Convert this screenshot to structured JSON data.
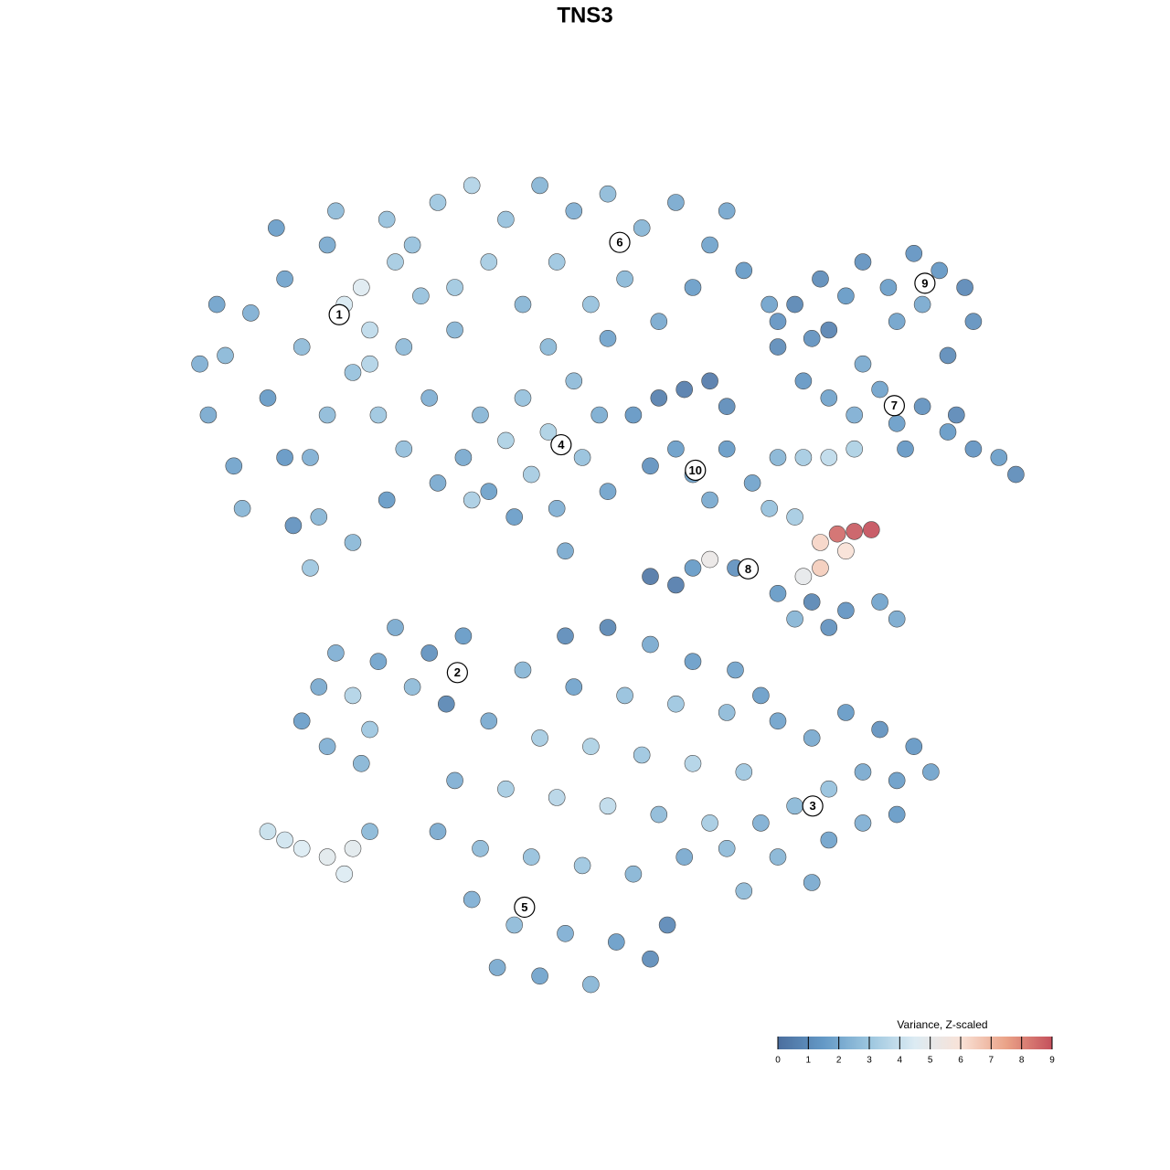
{
  "chart_data": {
    "type": "scatter",
    "title": "TNS3",
    "xlim": [
      -50,
      50
    ],
    "ylim": [
      -50,
      50
    ],
    "points": [
      {
        "x": -47,
        "y": 20,
        "value": 2
      },
      {
        "x": -45,
        "y": 27,
        "value": 2.5
      },
      {
        "x": -44,
        "y": 14,
        "value": 1.8
      },
      {
        "x": -42,
        "y": 32,
        "value": 2.2
      },
      {
        "x": -40,
        "y": 22,
        "value": 1.5
      },
      {
        "x": -38,
        "y": 36,
        "value": 1.8
      },
      {
        "x": -36,
        "y": 28,
        "value": 2.6
      },
      {
        "x": -35,
        "y": 15,
        "value": 2.2
      },
      {
        "x": -34,
        "y": 8,
        "value": 2.4
      },
      {
        "x": -33,
        "y": 40,
        "value": 2
      },
      {
        "x": -31,
        "y": 33,
        "value": 4.4
      },
      {
        "x": -29,
        "y": 35,
        "value": 4.6
      },
      {
        "x": -28,
        "y": 30,
        "value": 3.8
      },
      {
        "x": -30,
        "y": 25,
        "value": 2.8
      },
      {
        "x": -27,
        "y": 20,
        "value": 3
      },
      {
        "x": -25,
        "y": 38,
        "value": 3.2
      },
      {
        "x": -24,
        "y": 28,
        "value": 2.6
      },
      {
        "x": -22,
        "y": 34,
        "value": 2.8
      },
      {
        "x": -21,
        "y": 22,
        "value": 2.2
      },
      {
        "x": -20,
        "y": 12,
        "value": 2
      },
      {
        "x": -26,
        "y": 10,
        "value": 1.5
      },
      {
        "x": -30,
        "y": 5,
        "value": 2.5
      },
      {
        "x": -37,
        "y": 7,
        "value": 1.2
      },
      {
        "x": -43,
        "y": 9,
        "value": 2.4
      },
      {
        "x": -39,
        "y": 42,
        "value": 1.6
      },
      {
        "x": -32,
        "y": 44,
        "value": 2.6
      },
      {
        "x": -26,
        "y": 43,
        "value": 2.8
      },
      {
        "x": -18,
        "y": 30,
        "value": 2.4
      },
      {
        "x": -46,
        "y": 33,
        "value": 1.8
      },
      {
        "x": -48,
        "y": 26,
        "value": 2.2
      },
      {
        "x": -33,
        "y": 20,
        "value": 2.6
      },
      {
        "x": -35,
        "y": 2,
        "value": 3
      },
      {
        "x": -38,
        "y": 15,
        "value": 1.4
      },
      {
        "x": -24,
        "y": 16,
        "value": 2.7
      },
      {
        "x": -28,
        "y": 26,
        "value": 3.5
      },
      {
        "x": -20,
        "y": 45,
        "value": 3
      },
      {
        "x": -16,
        "y": 47,
        "value": 3.5
      },
      {
        "x": -12,
        "y": 43,
        "value": 2.8
      },
      {
        "x": -8,
        "y": 47,
        "value": 2.4
      },
      {
        "x": -4,
        "y": 44,
        "value": 2.2
      },
      {
        "x": 0,
        "y": 46,
        "value": 2.6
      },
      {
        "x": 4,
        "y": 42,
        "value": 2.4
      },
      {
        "x": 8,
        "y": 45,
        "value": 2
      },
      {
        "x": 12,
        "y": 40,
        "value": 1.8
      },
      {
        "x": 16,
        "y": 37,
        "value": 1.5
      },
      {
        "x": 19,
        "y": 33,
        "value": 1.8
      },
      {
        "x": -14,
        "y": 38,
        "value": 3.2
      },
      {
        "x": -6,
        "y": 38,
        "value": 3
      },
      {
        "x": 2,
        "y": 36,
        "value": 2.5
      },
      {
        "x": 10,
        "y": 35,
        "value": 1.6
      },
      {
        "x": -18,
        "y": 35,
        "value": 3.1
      },
      {
        "x": -10,
        "y": 33,
        "value": 2.4
      },
      {
        "x": -2,
        "y": 33,
        "value": 2.8
      },
      {
        "x": 6,
        "y": 31,
        "value": 2
      },
      {
        "x": -23,
        "y": 40,
        "value": 2.8
      },
      {
        "x": 14,
        "y": 44,
        "value": 1.9
      },
      {
        "x": 20,
        "y": 31,
        "value": 1.3
      },
      {
        "x": -7,
        "y": 28,
        "value": 2.5
      },
      {
        "x": 0,
        "y": 29,
        "value": 1.8
      },
      {
        "x": 22,
        "y": 33,
        "value": 0.8
      },
      {
        "x": 25,
        "y": 36,
        "value": 1
      },
      {
        "x": 28,
        "y": 34,
        "value": 1.5
      },
      {
        "x": 30,
        "y": 38,
        "value": 1.2
      },
      {
        "x": 33,
        "y": 35,
        "value": 1.6
      },
      {
        "x": 36,
        "y": 39,
        "value": 1.3
      },
      {
        "x": 39,
        "y": 37,
        "value": 1.4
      },
      {
        "x": 42,
        "y": 35,
        "value": 0.9
      },
      {
        "x": 43,
        "y": 31,
        "value": 1.2
      },
      {
        "x": 40,
        "y": 27,
        "value": 1
      },
      {
        "x": 34,
        "y": 31,
        "value": 1.8
      },
      {
        "x": 26,
        "y": 30,
        "value": 0.7
      },
      {
        "x": 37,
        "y": 33,
        "value": 2
      },
      {
        "x": 20,
        "y": 28,
        "value": 1
      },
      {
        "x": 23,
        "y": 24,
        "value": 1.4
      },
      {
        "x": 26,
        "y": 22,
        "value": 1.8
      },
      {
        "x": 29,
        "y": 20,
        "value": 2.2
      },
      {
        "x": 32,
        "y": 23,
        "value": 1.8
      },
      {
        "x": 34,
        "y": 19,
        "value": 1.6
      },
      {
        "x": 37,
        "y": 21,
        "value": 1.2
      },
      {
        "x": 40,
        "y": 18,
        "value": 1.5
      },
      {
        "x": 43,
        "y": 16,
        "value": 1.3
      },
      {
        "x": 46,
        "y": 15,
        "value": 1.6
      },
      {
        "x": 48,
        "y": 13,
        "value": 1
      },
      {
        "x": 41,
        "y": 20,
        "value": 0.9
      },
      {
        "x": 35,
        "y": 16,
        "value": 1.4
      },
      {
        "x": 30,
        "y": 26,
        "value": 2
      },
      {
        "x": 24,
        "y": 29,
        "value": 1.2
      },
      {
        "x": -17,
        "y": 15,
        "value": 2
      },
      {
        "x": -15,
        "y": 20,
        "value": 2.4
      },
      {
        "x": -14,
        "y": 11,
        "value": 1.7
      },
      {
        "x": -12,
        "y": 17,
        "value": 3.4
      },
      {
        "x": -10,
        "y": 22,
        "value": 2.8
      },
      {
        "x": -9,
        "y": 13,
        "value": 3.2
      },
      {
        "x": -7,
        "y": 18,
        "value": 3.4
      },
      {
        "x": -6,
        "y": 9,
        "value": 2.2
      },
      {
        "x": -4,
        "y": 24,
        "value": 2.6
      },
      {
        "x": -3,
        "y": 15,
        "value": 2.8
      },
      {
        "x": -1,
        "y": 20,
        "value": 2.1
      },
      {
        "x": 0,
        "y": 11,
        "value": 1.8
      },
      {
        "x": -11,
        "y": 8,
        "value": 1.6
      },
      {
        "x": -16,
        "y": 10,
        "value": 3.3
      },
      {
        "x": -5,
        "y": 4,
        "value": 2
      },
      {
        "x": 3,
        "y": 20,
        "value": 1.4
      },
      {
        "x": 6,
        "y": 22,
        "value": 0.6
      },
      {
        "x": 9,
        "y": 23,
        "value": 0.5
      },
      {
        "x": 12,
        "y": 24,
        "value": 0.4
      },
      {
        "x": 14,
        "y": 21,
        "value": 1
      },
      {
        "x": 8,
        "y": 16,
        "value": 1.6
      },
      {
        "x": 10,
        "y": 13,
        "value": 1.8
      },
      {
        "x": 12,
        "y": 10,
        "value": 2
      },
      {
        "x": 5,
        "y": 14,
        "value": 1.2
      },
      {
        "x": 14,
        "y": 16,
        "value": 1.5
      },
      {
        "x": 17,
        "y": 12,
        "value": 1.8
      },
      {
        "x": 20,
        "y": 15,
        "value": 2.4
      },
      {
        "x": 23,
        "y": 15,
        "value": 3.2
      },
      {
        "x": 26,
        "y": 15,
        "value": 3.8
      },
      {
        "x": 29,
        "y": 16,
        "value": 3.4
      },
      {
        "x": 19,
        "y": 9,
        "value": 2.8
      },
      {
        "x": 22,
        "y": 8,
        "value": 3.2
      },
      {
        "x": 25,
        "y": 5,
        "value": 6.3
      },
      {
        "x": 27,
        "y": 6,
        "value": 8.5
      },
      {
        "x": 29,
        "y": 6.3,
        "value": 8.8
      },
      {
        "x": 31,
        "y": 6.5,
        "value": 9
      },
      {
        "x": 28,
        "y": 4,
        "value": 6
      },
      {
        "x": 25,
        "y": 2,
        "value": 6.5
      },
      {
        "x": 23,
        "y": 1,
        "value": 5
      },
      {
        "x": 12,
        "y": 3,
        "value": 5.2
      },
      {
        "x": 5,
        "y": 1,
        "value": 0.3
      },
      {
        "x": 8,
        "y": 0,
        "value": 0.5
      },
      {
        "x": 10,
        "y": 2,
        "value": 1.5
      },
      {
        "x": 15,
        "y": 2,
        "value": 1.2
      },
      {
        "x": 20,
        "y": -1,
        "value": 1.5
      },
      {
        "x": 24,
        "y": -2,
        "value": 0.8
      },
      {
        "x": 28,
        "y": -3,
        "value": 1.3
      },
      {
        "x": 32,
        "y": -2,
        "value": 1.8
      },
      {
        "x": 34,
        "y": -4,
        "value": 2
      },
      {
        "x": 26,
        "y": -5,
        "value": 1.2
      },
      {
        "x": 22,
        "y": -4,
        "value": 2.4
      },
      {
        "x": -36,
        "y": -16,
        "value": 1.6
      },
      {
        "x": -34,
        "y": -12,
        "value": 2
      },
      {
        "x": -32,
        "y": -8,
        "value": 2.2
      },
      {
        "x": -30,
        "y": -13,
        "value": 3.5
      },
      {
        "x": -28,
        "y": -17,
        "value": 3
      },
      {
        "x": -27,
        "y": -9,
        "value": 1.8
      },
      {
        "x": -25,
        "y": -5,
        "value": 2
      },
      {
        "x": -23,
        "y": -12,
        "value": 2.6
      },
      {
        "x": -21,
        "y": -8,
        "value": 1.2
      },
      {
        "x": -19,
        "y": -14,
        "value": 0.8
      },
      {
        "x": -17,
        "y": -6,
        "value": 1.5
      },
      {
        "x": -29,
        "y": -21,
        "value": 2.4
      },
      {
        "x": -33,
        "y": -19,
        "value": 2.2
      },
      {
        "x": -40,
        "y": -29,
        "value": 4
      },
      {
        "x": -38,
        "y": -30,
        "value": 4.2
      },
      {
        "x": -36,
        "y": -31,
        "value": 4.5
      },
      {
        "x": -33,
        "y": -32,
        "value": 4.8
      },
      {
        "x": -31,
        "y": -34,
        "value": 4.5
      },
      {
        "x": -30,
        "y": -31,
        "value": 4.8
      },
      {
        "x": -28,
        "y": -29,
        "value": 2.5
      },
      {
        "x": -5,
        "y": -6,
        "value": 1
      },
      {
        "x": 0,
        "y": -5,
        "value": 0.8
      },
      {
        "x": 5,
        "y": -7,
        "value": 2
      },
      {
        "x": 10,
        "y": -9,
        "value": 1.6
      },
      {
        "x": 15,
        "y": -10,
        "value": 1.8
      },
      {
        "x": -10,
        "y": -10,
        "value": 2.4
      },
      {
        "x": -4,
        "y": -12,
        "value": 1.8
      },
      {
        "x": 2,
        "y": -13,
        "value": 2.8
      },
      {
        "x": 8,
        "y": -14,
        "value": 3
      },
      {
        "x": 14,
        "y": -15,
        "value": 2.6
      },
      {
        "x": 18,
        "y": -13,
        "value": 1.6
      },
      {
        "x": -14,
        "y": -16,
        "value": 2
      },
      {
        "x": -8,
        "y": -18,
        "value": 3.2
      },
      {
        "x": -2,
        "y": -19,
        "value": 3.4
      },
      {
        "x": 4,
        "y": -20,
        "value": 3
      },
      {
        "x": 10,
        "y": -21,
        "value": 3.5
      },
      {
        "x": 16,
        "y": -22,
        "value": 3
      },
      {
        "x": -18,
        "y": -23,
        "value": 2.2
      },
      {
        "x": -12,
        "y": -24,
        "value": 3.2
      },
      {
        "x": -6,
        "y": -25,
        "value": 3.6
      },
      {
        "x": 0,
        "y": -26,
        "value": 3.8
      },
      {
        "x": 6,
        "y": -27,
        "value": 2.6
      },
      {
        "x": 12,
        "y": -28,
        "value": 3.2
      },
      {
        "x": -20,
        "y": -29,
        "value": 2
      },
      {
        "x": -15,
        "y": -31,
        "value": 2.6
      },
      {
        "x": -9,
        "y": -32,
        "value": 2.8
      },
      {
        "x": -3,
        "y": -33,
        "value": 3
      },
      {
        "x": 3,
        "y": -34,
        "value": 2.4
      },
      {
        "x": 9,
        "y": -32,
        "value": 2
      },
      {
        "x": -16,
        "y": -37,
        "value": 2.2
      },
      {
        "x": -11,
        "y": -40,
        "value": 2.6
      },
      {
        "x": -5,
        "y": -41,
        "value": 2.2
      },
      {
        "x": 1,
        "y": -42,
        "value": 1.6
      },
      {
        "x": 5,
        "y": -44,
        "value": 1
      },
      {
        "x": -8,
        "y": -46,
        "value": 1.8
      },
      {
        "x": -2,
        "y": -47,
        "value": 2.4
      },
      {
        "x": 7,
        "y": -40,
        "value": 0.9
      },
      {
        "x": -13,
        "y": -45,
        "value": 2
      },
      {
        "x": 20,
        "y": -16,
        "value": 1.8
      },
      {
        "x": 24,
        "y": -18,
        "value": 2
      },
      {
        "x": 28,
        "y": -15,
        "value": 1.5
      },
      {
        "x": 32,
        "y": -17,
        "value": 1.2
      },
      {
        "x": 36,
        "y": -19,
        "value": 1.4
      },
      {
        "x": 38,
        "y": -22,
        "value": 1.8
      },
      {
        "x": 34,
        "y": -23,
        "value": 1.6
      },
      {
        "x": 30,
        "y": -22,
        "value": 2
      },
      {
        "x": 26,
        "y": -24,
        "value": 2.8
      },
      {
        "x": 22,
        "y": -26,
        "value": 2.5
      },
      {
        "x": 18,
        "y": -28,
        "value": 2.2
      },
      {
        "x": 14,
        "y": -31,
        "value": 2.6
      },
      {
        "x": 20,
        "y": -32,
        "value": 2.4
      },
      {
        "x": 26,
        "y": -30,
        "value": 1.8
      },
      {
        "x": 30,
        "y": -28,
        "value": 2.2
      },
      {
        "x": 34,
        "y": -27,
        "value": 1.5
      },
      {
        "x": 24,
        "y": -35,
        "value": 2
      },
      {
        "x": 16,
        "y": -36,
        "value": 2.6
      }
    ],
    "cluster_labels": [
      {
        "label": "1",
        "x": -31.6,
        "y": 31.8
      },
      {
        "label": "6",
        "x": 1.4,
        "y": 40.3
      },
      {
        "label": "9",
        "x": 37.3,
        "y": 35.5
      },
      {
        "label": "7",
        "x": 33.7,
        "y": 21.1
      },
      {
        "label": "4",
        "x": -5.5,
        "y": 16.5
      },
      {
        "label": "10",
        "x": 10.3,
        "y": 13.5
      },
      {
        "label": "8",
        "x": 16.5,
        "y": 1.9
      },
      {
        "label": "2",
        "x": -17.7,
        "y": -10.3
      },
      {
        "label": "3",
        "x": 24.1,
        "y": -26
      },
      {
        "label": "5",
        "x": -9.8,
        "y": -37.9
      }
    ],
    "colorbar": {
      "title": "Variance, Z-scaled",
      "lim": [
        0,
        9
      ],
      "ticks": [
        0,
        1,
        2,
        3,
        4,
        5,
        6,
        7,
        8,
        9
      ],
      "colors": [
        "#4b6e9e",
        "#6499c6",
        "#9cc6df",
        "#dcebf3",
        "#f9e2d7",
        "#eaa287",
        "#c4505c"
      ]
    }
  }
}
